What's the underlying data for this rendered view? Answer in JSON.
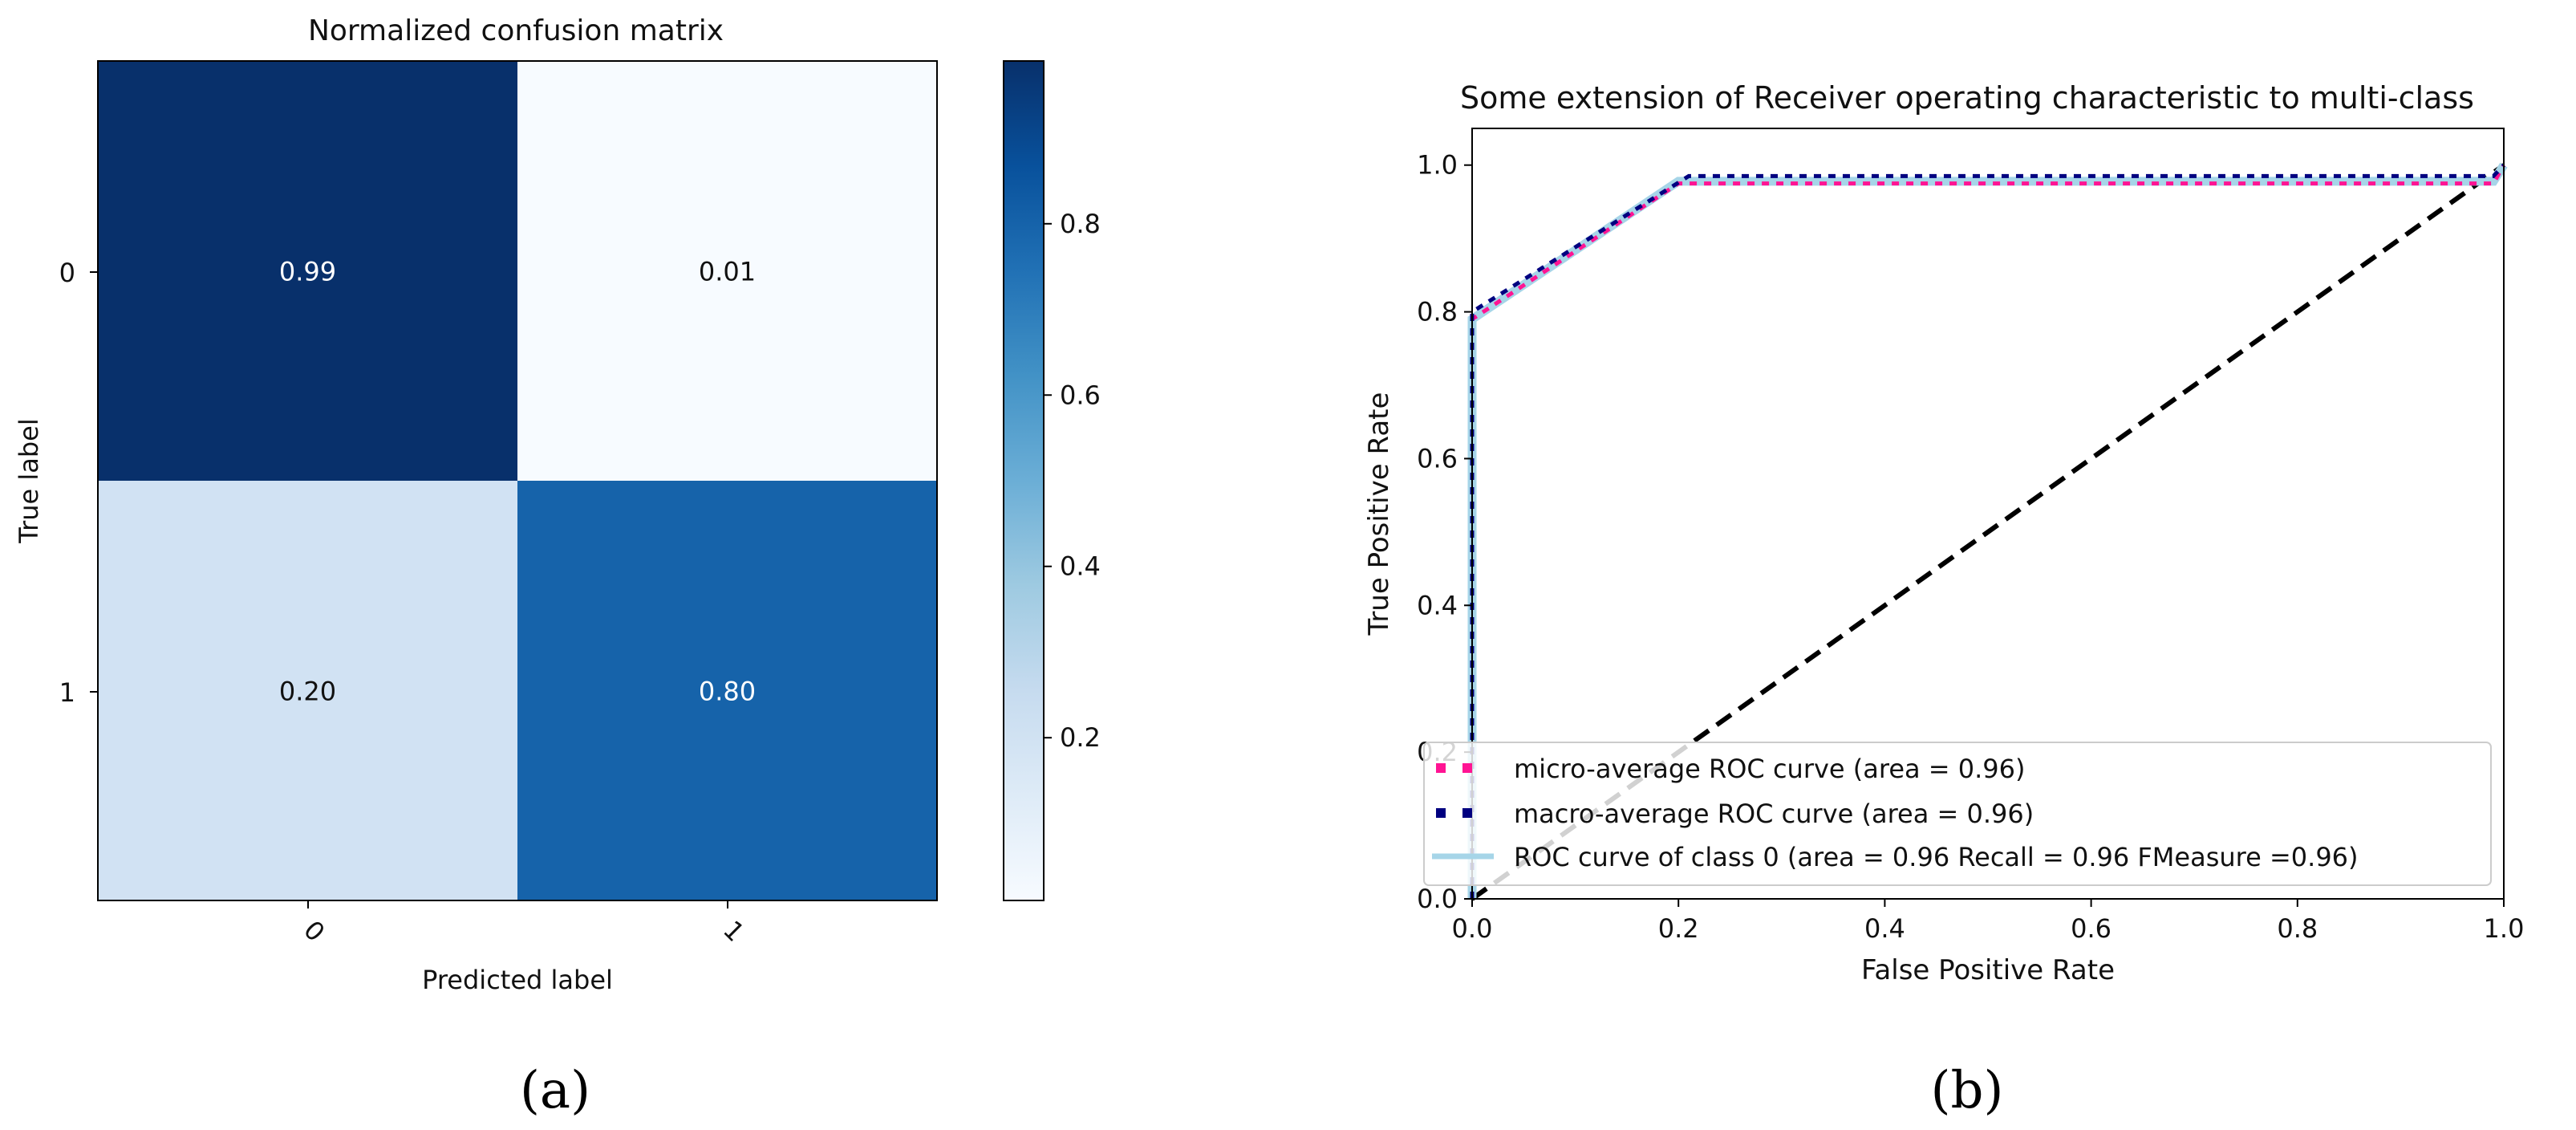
{
  "colors": {
    "cm_low": "#f7fbff",
    "cm_high": "#08306b",
    "micro": "#ff1493",
    "macro": "#000080",
    "class0": "#a6d5e8",
    "diagonal": "#000000",
    "text_light": "#ffffff",
    "text_dark": "#111111"
  },
  "chart_data": [
    {
      "type": "heatmap",
      "title": "Normalized confusion matrix",
      "xlabel": "Predicted label",
      "ylabel": "True label",
      "x_categories": [
        "0",
        "1"
      ],
      "y_categories": [
        "0",
        "1"
      ],
      "values": [
        [
          0.99,
          0.01
        ],
        [
          0.2,
          0.8
        ]
      ],
      "cell_labels": [
        [
          "0.99",
          "0.01"
        ],
        [
          "0.20",
          "0.80"
        ]
      ],
      "colorbar": {
        "ticks": [
          0.2,
          0.4,
          0.6,
          0.8
        ],
        "tick_labels": [
          "0.2",
          "0.4",
          "0.6",
          "0.8"
        ],
        "range": [
          0.01,
          0.99
        ]
      },
      "caption": "(a)"
    },
    {
      "type": "line",
      "title": "Some extension of Receiver operating characteristic to multi-class",
      "xlabel": "False Positive Rate",
      "ylabel": "True Positive Rate",
      "xlim": [
        0.0,
        1.0
      ],
      "ylim": [
        0.0,
        1.05
      ],
      "xticks": [
        "0.0",
        "0.2",
        "0.4",
        "0.6",
        "0.8",
        "1.0"
      ],
      "yticks": [
        "0.0",
        "0.2",
        "0.4",
        "0.6",
        "0.8",
        "1.0"
      ],
      "series": [
        {
          "name": "micro-average ROC curve (area = 0.96)",
          "style": "dotted",
          "color": "micro",
          "x": [
            0.0,
            0.0,
            0.2,
            0.99,
            1.0
          ],
          "y": [
            0.0,
            0.79,
            0.975,
            0.975,
            1.0
          ]
        },
        {
          "name": "macro-average ROC curve (area = 0.96)",
          "style": "dotted",
          "color": "macro",
          "x": [
            0.0,
            0.0,
            0.21,
            0.99,
            1.0
          ],
          "y": [
            0.0,
            0.8,
            0.985,
            0.985,
            1.0
          ]
        },
        {
          "name": "ROC curve of class 0 (area = 0.96  Recall = 0.96 FMeasure =0.96)",
          "style": "solid",
          "color": "class0",
          "x": [
            0.0,
            0.0,
            0.2,
            0.99,
            1.0
          ],
          "y": [
            0.0,
            0.79,
            0.978,
            0.978,
            1.0
          ]
        }
      ],
      "reference_line": {
        "x": [
          0.0,
          1.0
        ],
        "y": [
          0.0,
          1.0
        ],
        "style": "dashed",
        "color": "diagonal"
      },
      "legend": "lower right",
      "caption": "(b)"
    }
  ]
}
